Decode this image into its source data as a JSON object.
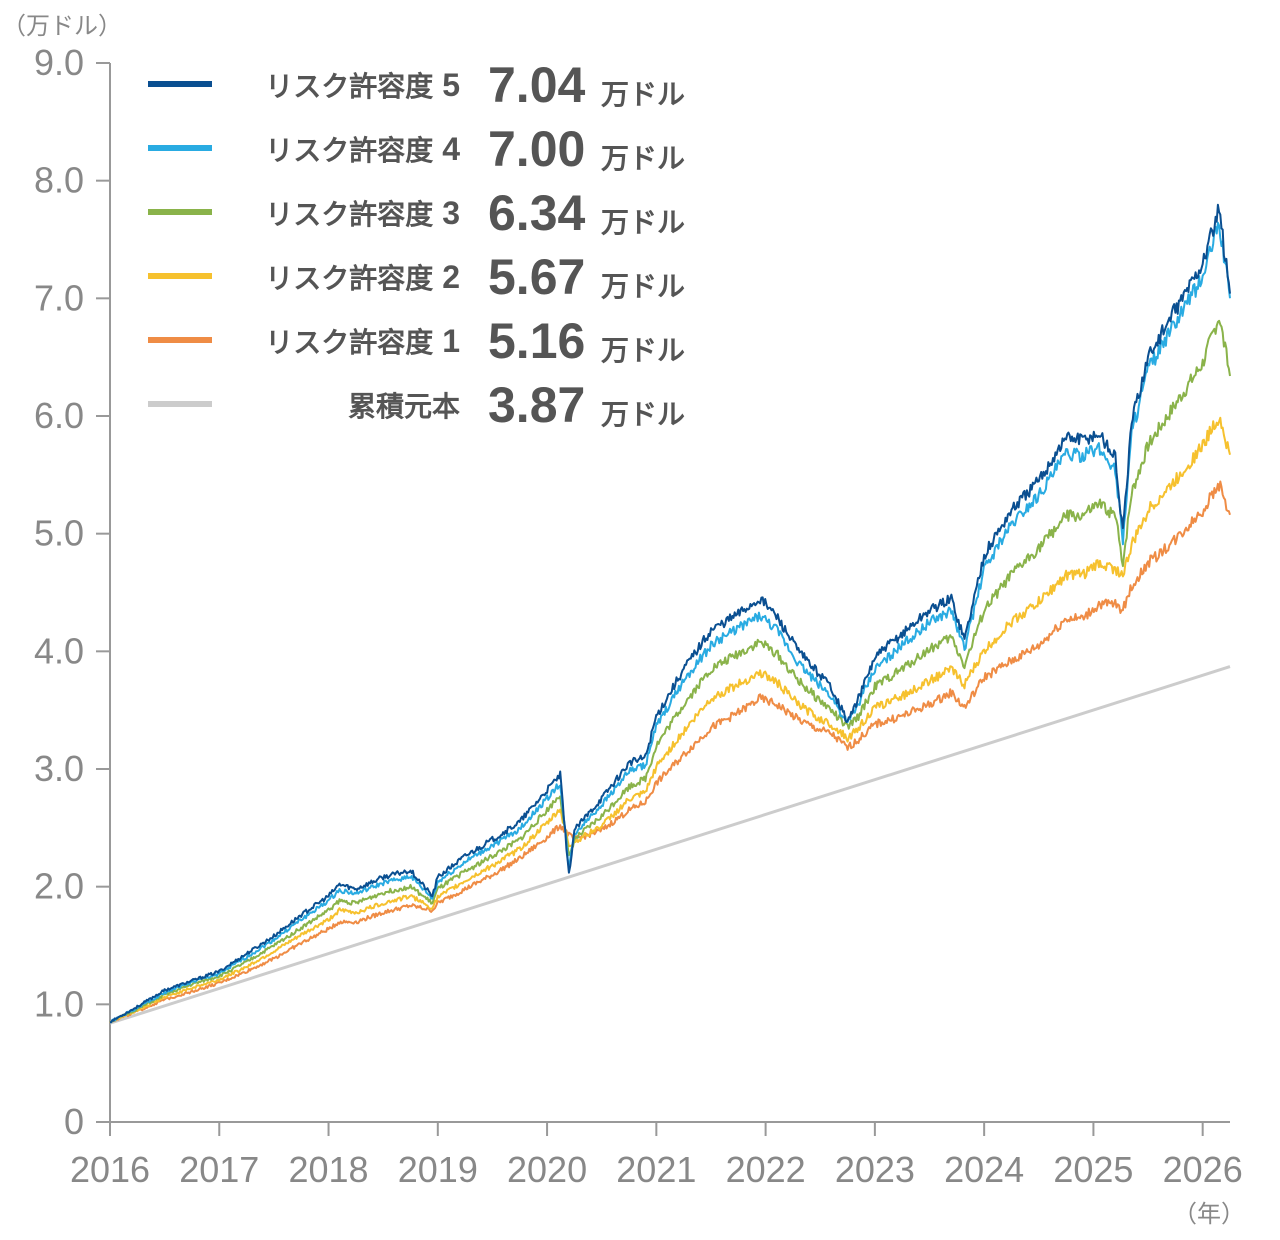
{
  "chart_data": {
    "type": "line",
    "y_unit_label": "（万ドル）",
    "x_unit_label": "（年）",
    "ylim": [
      0,
      9.0
    ],
    "y_ticks": [
      "0",
      "1.0",
      "2.0",
      "3.0",
      "4.0",
      "5.0",
      "6.0",
      "7.0",
      "8.0",
      "9.0"
    ],
    "x_ticks": [
      "2016",
      "2017",
      "2018",
      "2019",
      "2020",
      "2021",
      "2022",
      "2023",
      "2024",
      "2025",
      "2026"
    ],
    "xlim": [
      2016.0,
      2026.25
    ],
    "grid": false,
    "legend_position": "top-left",
    "value_unit": "万ドル",
    "series": [
      {
        "name": "リスク許容度 5",
        "label_main": "リスク許容度",
        "label_num": "5",
        "final_value": "7.04",
        "color": "#0a4f91",
        "points": [
          [
            2016.0,
            0.85
          ],
          [
            2016.25,
            0.98
          ],
          [
            2016.5,
            1.12
          ],
          [
            2016.75,
            1.2
          ],
          [
            2017.0,
            1.28
          ],
          [
            2017.25,
            1.43
          ],
          [
            2017.5,
            1.58
          ],
          [
            2017.75,
            1.76
          ],
          [
            2018.0,
            1.92
          ],
          [
            2018.1,
            2.02
          ],
          [
            2018.25,
            1.98
          ],
          [
            2018.5,
            2.08
          ],
          [
            2018.75,
            2.14
          ],
          [
            2018.95,
            1.92
          ],
          [
            2019.0,
            2.08
          ],
          [
            2019.25,
            2.26
          ],
          [
            2019.5,
            2.4
          ],
          [
            2019.75,
            2.55
          ],
          [
            2020.0,
            2.82
          ],
          [
            2020.12,
            2.95
          ],
          [
            2020.2,
            2.1
          ],
          [
            2020.25,
            2.48
          ],
          [
            2020.5,
            2.75
          ],
          [
            2020.75,
            3.05
          ],
          [
            2020.9,
            3.1
          ],
          [
            2021.0,
            3.45
          ],
          [
            2021.25,
            3.85
          ],
          [
            2021.5,
            4.18
          ],
          [
            2021.75,
            4.32
          ],
          [
            2021.95,
            4.45
          ],
          [
            2022.1,
            4.3
          ],
          [
            2022.3,
            4.0
          ],
          [
            2022.45,
            3.85
          ],
          [
            2022.6,
            3.7
          ],
          [
            2022.75,
            3.4
          ],
          [
            2022.85,
            3.6
          ],
          [
            2023.0,
            3.95
          ],
          [
            2023.25,
            4.15
          ],
          [
            2023.5,
            4.35
          ],
          [
            2023.7,
            4.45
          ],
          [
            2023.82,
            4.1
          ],
          [
            2024.0,
            4.82
          ],
          [
            2024.25,
            5.2
          ],
          [
            2024.5,
            5.45
          ],
          [
            2024.75,
            5.82
          ],
          [
            2024.9,
            5.8
          ],
          [
            2025.05,
            5.85
          ],
          [
            2025.2,
            5.65
          ],
          [
            2025.27,
            5.0
          ],
          [
            2025.35,
            5.95
          ],
          [
            2025.5,
            6.5
          ],
          [
            2025.75,
            6.9
          ],
          [
            2026.0,
            7.3
          ],
          [
            2026.15,
            7.75
          ],
          [
            2026.25,
            7.04
          ]
        ]
      },
      {
        "name": "リスク許容度 4",
        "label_main": "リスク許容度",
        "label_num": "4",
        "final_value": "7.00",
        "color": "#29abe2",
        "points": [
          [
            2016.0,
            0.85
          ],
          [
            2016.25,
            0.97
          ],
          [
            2016.5,
            1.1
          ],
          [
            2016.75,
            1.19
          ],
          [
            2017.0,
            1.26
          ],
          [
            2017.25,
            1.4
          ],
          [
            2017.5,
            1.55
          ],
          [
            2017.75,
            1.72
          ],
          [
            2018.0,
            1.88
          ],
          [
            2018.1,
            1.97
          ],
          [
            2018.25,
            1.94
          ],
          [
            2018.5,
            2.03
          ],
          [
            2018.75,
            2.09
          ],
          [
            2018.95,
            1.9
          ],
          [
            2019.0,
            2.04
          ],
          [
            2019.25,
            2.21
          ],
          [
            2019.5,
            2.35
          ],
          [
            2019.75,
            2.49
          ],
          [
            2020.0,
            2.75
          ],
          [
            2020.12,
            2.88
          ],
          [
            2020.2,
            2.15
          ],
          [
            2020.25,
            2.45
          ],
          [
            2020.5,
            2.7
          ],
          [
            2020.75,
            2.98
          ],
          [
            2020.9,
            3.03
          ],
          [
            2021.0,
            3.36
          ],
          [
            2021.25,
            3.75
          ],
          [
            2021.5,
            4.05
          ],
          [
            2021.75,
            4.2
          ],
          [
            2021.95,
            4.3
          ],
          [
            2022.1,
            4.18
          ],
          [
            2022.3,
            3.9
          ],
          [
            2022.45,
            3.75
          ],
          [
            2022.6,
            3.62
          ],
          [
            2022.75,
            3.38
          ],
          [
            2022.85,
            3.55
          ],
          [
            2023.0,
            3.85
          ],
          [
            2023.25,
            4.05
          ],
          [
            2023.5,
            4.25
          ],
          [
            2023.7,
            4.35
          ],
          [
            2023.82,
            4.02
          ],
          [
            2024.0,
            4.7
          ],
          [
            2024.25,
            5.08
          ],
          [
            2024.5,
            5.33
          ],
          [
            2024.75,
            5.68
          ],
          [
            2024.9,
            5.66
          ],
          [
            2025.05,
            5.72
          ],
          [
            2025.2,
            5.55
          ],
          [
            2025.27,
            4.95
          ],
          [
            2025.35,
            5.85
          ],
          [
            2025.5,
            6.4
          ],
          [
            2025.75,
            6.78
          ],
          [
            2026.0,
            7.18
          ],
          [
            2026.15,
            7.65
          ],
          [
            2026.25,
            7.0
          ]
        ]
      },
      {
        "name": "リスク許容度 3",
        "label_main": "リスク許容度",
        "label_num": "3",
        "final_value": "6.34",
        "color": "#8ab34a",
        "points": [
          [
            2016.0,
            0.85
          ],
          [
            2016.25,
            0.96
          ],
          [
            2016.5,
            1.08
          ],
          [
            2016.75,
            1.17
          ],
          [
            2017.0,
            1.24
          ],
          [
            2017.25,
            1.36
          ],
          [
            2017.5,
            1.5
          ],
          [
            2017.75,
            1.65
          ],
          [
            2018.0,
            1.8
          ],
          [
            2018.1,
            1.88
          ],
          [
            2018.25,
            1.86
          ],
          [
            2018.5,
            1.95
          ],
          [
            2018.75,
            2.0
          ],
          [
            2018.95,
            1.86
          ],
          [
            2019.0,
            1.98
          ],
          [
            2019.25,
            2.13
          ],
          [
            2019.5,
            2.26
          ],
          [
            2019.75,
            2.4
          ],
          [
            2020.0,
            2.65
          ],
          [
            2020.12,
            2.78
          ],
          [
            2020.2,
            2.25
          ],
          [
            2020.25,
            2.4
          ],
          [
            2020.5,
            2.6
          ],
          [
            2020.75,
            2.85
          ],
          [
            2020.9,
            2.92
          ],
          [
            2021.0,
            3.2
          ],
          [
            2021.25,
            3.55
          ],
          [
            2021.5,
            3.85
          ],
          [
            2021.75,
            3.98
          ],
          [
            2021.95,
            4.08
          ],
          [
            2022.1,
            3.98
          ],
          [
            2022.3,
            3.75
          ],
          [
            2022.45,
            3.62
          ],
          [
            2022.6,
            3.5
          ],
          [
            2022.75,
            3.35
          ],
          [
            2022.85,
            3.45
          ],
          [
            2023.0,
            3.7
          ],
          [
            2023.25,
            3.85
          ],
          [
            2023.5,
            4.02
          ],
          [
            2023.7,
            4.12
          ],
          [
            2023.82,
            3.88
          ],
          [
            2024.0,
            4.35
          ],
          [
            2024.25,
            4.65
          ],
          [
            2024.5,
            4.88
          ],
          [
            2024.75,
            5.15
          ],
          [
            2024.9,
            5.15
          ],
          [
            2025.05,
            5.25
          ],
          [
            2025.2,
            5.15
          ],
          [
            2025.27,
            4.75
          ],
          [
            2025.35,
            5.35
          ],
          [
            2025.5,
            5.75
          ],
          [
            2025.75,
            6.1
          ],
          [
            2026.0,
            6.45
          ],
          [
            2026.15,
            6.85
          ],
          [
            2026.25,
            6.34
          ]
        ]
      },
      {
        "name": "リスク許容度 2",
        "label_main": "リスク許容度",
        "label_num": "2",
        "final_value": "5.67",
        "color": "#f6c12e",
        "points": [
          [
            2016.0,
            0.85
          ],
          [
            2016.25,
            0.95
          ],
          [
            2016.5,
            1.06
          ],
          [
            2016.75,
            1.14
          ],
          [
            2017.0,
            1.21
          ],
          [
            2017.25,
            1.32
          ],
          [
            2017.5,
            1.45
          ],
          [
            2017.75,
            1.59
          ],
          [
            2018.0,
            1.72
          ],
          [
            2018.1,
            1.8
          ],
          [
            2018.25,
            1.78
          ],
          [
            2018.5,
            1.86
          ],
          [
            2018.75,
            1.92
          ],
          [
            2018.95,
            1.82
          ],
          [
            2019.0,
            1.91
          ],
          [
            2019.25,
            2.05
          ],
          [
            2019.5,
            2.18
          ],
          [
            2019.75,
            2.32
          ],
          [
            2020.0,
            2.54
          ],
          [
            2020.12,
            2.66
          ],
          [
            2020.2,
            2.35
          ],
          [
            2020.25,
            2.38
          ],
          [
            2020.5,
            2.52
          ],
          [
            2020.75,
            2.74
          ],
          [
            2020.9,
            2.8
          ],
          [
            2021.0,
            3.02
          ],
          [
            2021.25,
            3.32
          ],
          [
            2021.5,
            3.6
          ],
          [
            2021.75,
            3.72
          ],
          [
            2021.95,
            3.82
          ],
          [
            2022.1,
            3.74
          ],
          [
            2022.3,
            3.55
          ],
          [
            2022.45,
            3.45
          ],
          [
            2022.6,
            3.38
          ],
          [
            2022.75,
            3.26
          ],
          [
            2022.85,
            3.35
          ],
          [
            2023.0,
            3.52
          ],
          [
            2023.25,
            3.62
          ],
          [
            2023.5,
            3.75
          ],
          [
            2023.7,
            3.85
          ],
          [
            2023.82,
            3.72
          ],
          [
            2024.0,
            4.0
          ],
          [
            2024.25,
            4.25
          ],
          [
            2024.5,
            4.42
          ],
          [
            2024.75,
            4.65
          ],
          [
            2024.9,
            4.65
          ],
          [
            2025.05,
            4.75
          ],
          [
            2025.2,
            4.7
          ],
          [
            2025.27,
            4.65
          ],
          [
            2025.35,
            4.9
          ],
          [
            2025.5,
            5.2
          ],
          [
            2025.75,
            5.45
          ],
          [
            2026.0,
            5.75
          ],
          [
            2026.15,
            6.0
          ],
          [
            2026.25,
            5.67
          ]
        ]
      },
      {
        "name": "リスク許容度 1",
        "label_main": "リスク許容度",
        "label_num": "1",
        "final_value": "5.16",
        "color": "#ef8c45",
        "points": [
          [
            2016.0,
            0.85
          ],
          [
            2016.25,
            0.94
          ],
          [
            2016.5,
            1.04
          ],
          [
            2016.75,
            1.11
          ],
          [
            2017.0,
            1.18
          ],
          [
            2017.25,
            1.28
          ],
          [
            2017.5,
            1.39
          ],
          [
            2017.75,
            1.52
          ],
          [
            2018.0,
            1.64
          ],
          [
            2018.1,
            1.7
          ],
          [
            2018.25,
            1.7
          ],
          [
            2018.5,
            1.78
          ],
          [
            2018.75,
            1.84
          ],
          [
            2018.95,
            1.8
          ],
          [
            2019.0,
            1.86
          ],
          [
            2019.25,
            1.98
          ],
          [
            2019.5,
            2.1
          ],
          [
            2019.75,
            2.24
          ],
          [
            2020.0,
            2.42
          ],
          [
            2020.12,
            2.52
          ],
          [
            2020.2,
            2.44
          ],
          [
            2020.25,
            2.4
          ],
          [
            2020.5,
            2.48
          ],
          [
            2020.75,
            2.65
          ],
          [
            2020.9,
            2.72
          ],
          [
            2021.0,
            2.88
          ],
          [
            2021.25,
            3.12
          ],
          [
            2021.5,
            3.35
          ],
          [
            2021.75,
            3.48
          ],
          [
            2021.95,
            3.6
          ],
          [
            2022.1,
            3.55
          ],
          [
            2022.3,
            3.42
          ],
          [
            2022.45,
            3.35
          ],
          [
            2022.6,
            3.3
          ],
          [
            2022.75,
            3.18
          ],
          [
            2022.85,
            3.25
          ],
          [
            2023.0,
            3.38
          ],
          [
            2023.25,
            3.45
          ],
          [
            2023.5,
            3.55
          ],
          [
            2023.7,
            3.65
          ],
          [
            2023.82,
            3.52
          ],
          [
            2024.0,
            3.78
          ],
          [
            2024.25,
            3.92
          ],
          [
            2024.5,
            4.05
          ],
          [
            2024.75,
            4.28
          ],
          [
            2024.9,
            4.28
          ],
          [
            2025.05,
            4.4
          ],
          [
            2025.2,
            4.4
          ],
          [
            2025.27,
            4.35
          ],
          [
            2025.35,
            4.55
          ],
          [
            2025.5,
            4.75
          ],
          [
            2025.75,
            4.95
          ],
          [
            2026.0,
            5.2
          ],
          [
            2026.15,
            5.42
          ],
          [
            2026.25,
            5.16
          ]
        ]
      },
      {
        "name": "累積元本",
        "label_main": "累積元本",
        "label_num": "",
        "final_value": "3.87",
        "color": "#cccccc",
        "points": [
          [
            2016.0,
            0.84
          ],
          [
            2026.25,
            3.87
          ]
        ]
      }
    ]
  }
}
